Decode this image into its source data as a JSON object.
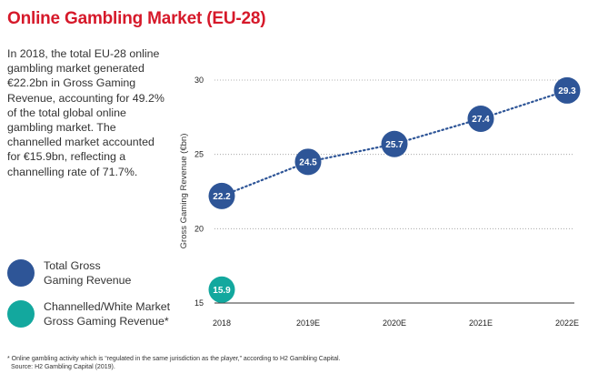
{
  "title": "Online Gambling Market (EU-28)",
  "description": "In 2018, the total EU-28 online gambling market generated €22.2bn in Gross Gaming Revenue, accounting for 49.2% of the total global online gambling market. The channelled market accounted for €15.9bn, reflecting a channelling rate of 71.7%.",
  "legend": [
    {
      "line1": "Total Gross",
      "line2": "Gaming Revenue",
      "color": "#2e5597"
    },
    {
      "line1": "Channelled/White Market",
      "line2": "Gross Gaming Revenue*",
      "color": "#13a89e"
    }
  ],
  "footnote": {
    "line1": "* Online gambling activity which is “regulated in the same jurisdiction as the player,” according to H2 Gambling Capital.",
    "line2": "Source: H2 Gambling Capital (2019)."
  },
  "chart_data": {
    "type": "line",
    "categories": [
      "2018",
      "2019E",
      "2020E",
      "2021E",
      "2022E"
    ],
    "series": [
      {
        "name": "Total Gross Gaming Revenue",
        "values": [
          22.2,
          24.5,
          25.7,
          27.4,
          29.3
        ],
        "color": "#2e5597",
        "line": "dotted"
      },
      {
        "name": "Channelled/White Market Gross Gaming Revenue*",
        "values": [
          15.9,
          null,
          null,
          null,
          null
        ],
        "color": "#13a89e"
      }
    ],
    "ylabel": "Gross Gaming Revenue (€bn)",
    "xlabel": "",
    "ylim": [
      15,
      30
    ],
    "yticks": [
      15,
      20,
      25,
      30
    ],
    "grid": "dotted horizontal"
  }
}
